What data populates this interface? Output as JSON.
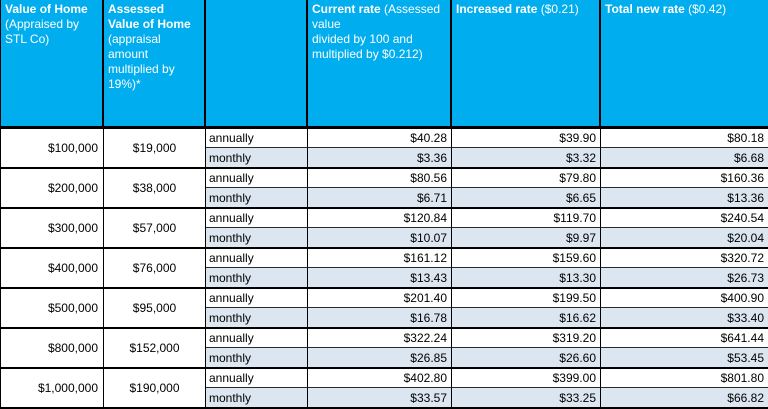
{
  "colors": {
    "header_bg": "#00AEEF",
    "header_text": "#FFFFFF",
    "monthly_bg": "#DCE6F1",
    "flag_green": "#1F7A2E"
  },
  "header": {
    "cells": [
      {
        "bold": "Value of Home",
        "normal": "(Appraised by\nSTL Co)"
      },
      {
        "bold": "Assessed\nValue of Home",
        "normal": "(appraisal\namount\nmultiplied by\n19%)*"
      },
      {
        "bold": "",
        "normal": ""
      },
      {
        "bold": "Current rate",
        "normal": "(Assessed value\ndivided by 100 and\nmultiplied by $0.212)"
      },
      {
        "bold": "Increased rate",
        "normal": " ($0.21)"
      },
      {
        "bold": "Total new rate",
        "normal": " ($0.42)"
      }
    ]
  },
  "chart_data": {
    "type": "table",
    "title": "",
    "columns": [
      "Value of Home (Appraised by STL Co)",
      "Assessed Value of Home (appraisal amount multiplied by 19%)*",
      "",
      "Current rate (Assessed value divided by 100 and multiplied by $0.212)",
      "Increased rate ($0.21)",
      "Total new rate ($0.42)"
    ],
    "rows": [
      {
        "home": "$100,000",
        "assessed": "$19,000",
        "annually": {
          "label": "annually",
          "current": "$40.28",
          "increased": "$39.90",
          "total": "$80.18",
          "flag": false
        },
        "monthly": {
          "label": "monthly",
          "current": "$3.36",
          "increased": "$3.32",
          "total": "$6.68",
          "flag": true
        }
      },
      {
        "home": "$200,000",
        "assessed": "$38,000",
        "annually": {
          "label": "annually",
          "current": "$80.56",
          "increased": "$79.80",
          "total": "$160.36",
          "flag": false
        },
        "monthly": {
          "label": "monthly",
          "current": "$6.71",
          "increased": "$6.65",
          "total": "$13.36",
          "flag": false
        }
      },
      {
        "home": "$300,000",
        "assessed": "$57,000",
        "annually": {
          "label": "annually",
          "current": "$120.84",
          "increased": "$119.70",
          "total": "$240.54",
          "flag": true
        },
        "monthly": {
          "label": "monthly",
          "current": "$10.07",
          "increased": "$9.97",
          "total": "$20.04",
          "flag": true
        }
      },
      {
        "home": "$400,000",
        "assessed": "$76,000",
        "annually": {
          "label": "annually",
          "current": "$161.12",
          "increased": "$159.60",
          "total": "$320.72",
          "flag": false
        },
        "monthly": {
          "label": "monthly",
          "current": "$13.43",
          "increased": "$13.30",
          "total": "$26.73",
          "flag": true
        }
      },
      {
        "home": "$500,000",
        "assessed": "$95,000",
        "annually": {
          "label": "annually",
          "current": "$201.40",
          "increased": "$199.50",
          "total": "$400.90",
          "flag": true
        },
        "monthly": {
          "label": "monthly",
          "current": "$16.78",
          "increased": "$16.62",
          "total": "$33.40",
          "flag": false
        }
      },
      {
        "home": "$800,000",
        "assessed": "$152,000",
        "annually": {
          "label": "annually",
          "current": "$322.24",
          "increased": "$319.20",
          "total": "$641.44",
          "flag": true
        },
        "monthly": {
          "label": "monthly",
          "current": "$26.85",
          "increased": "$26.60",
          "total": "$53.45",
          "flag": true
        }
      },
      {
        "home": "$1,000,000",
        "assessed": "$190,000",
        "annually": {
          "label": "annually",
          "current": "$402.80",
          "increased": "$399.00",
          "total": "$801.80",
          "flag": true
        },
        "monthly": {
          "label": "monthly",
          "current": "$33.57",
          "increased": "$33.25",
          "total": "$66.82",
          "flag": false
        }
      }
    ]
  }
}
